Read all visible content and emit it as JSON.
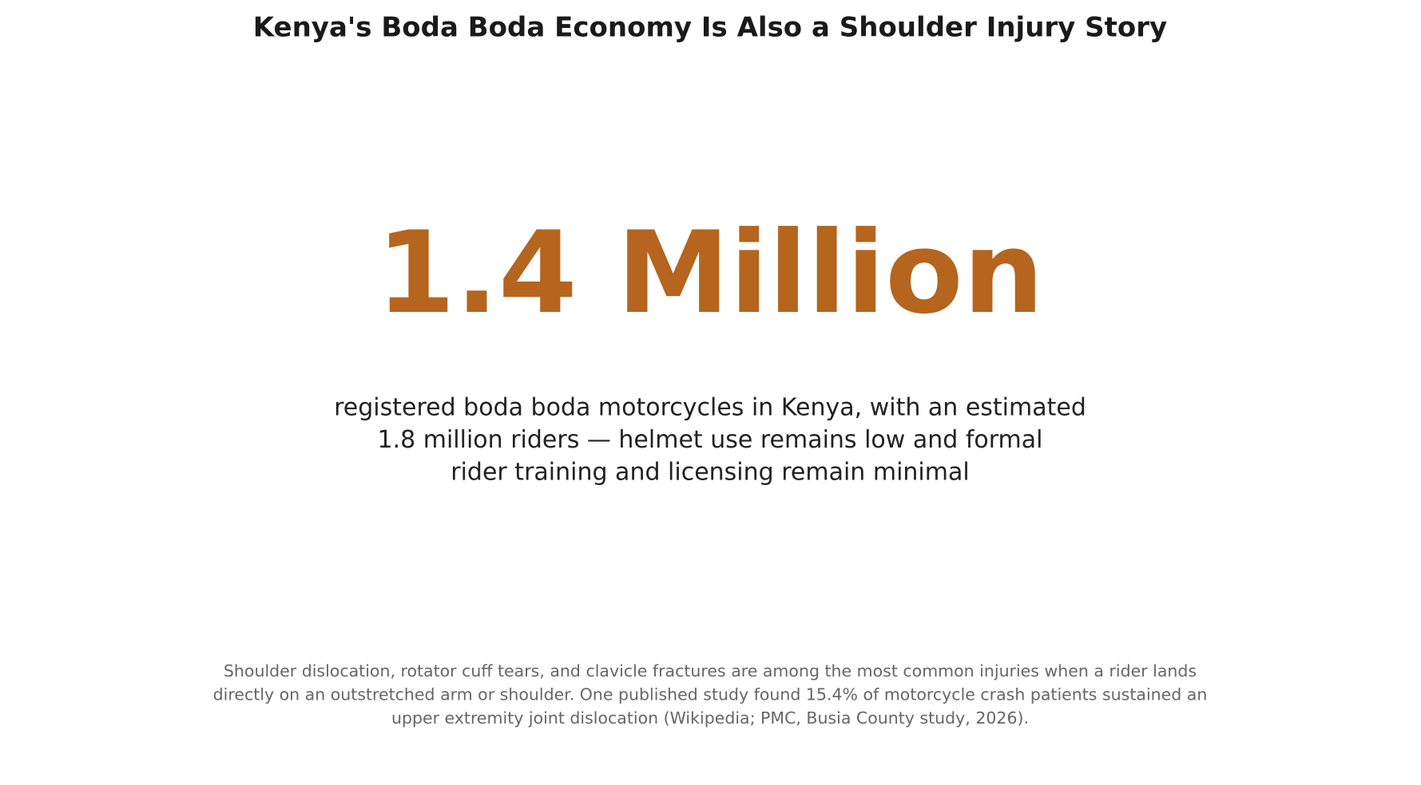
{
  "header": {
    "title": "Kenya's Boda Boda Economy Is Also a Shoulder Injury Story"
  },
  "headline": "1.4 Million",
  "description": {
    "lines": [
      "registered boda boda motorcycles in Kenya, with an estimated",
      "1.8 million riders — helmet use remains low and formal",
      "rider training and licensing remain minimal"
    ]
  },
  "footnote": {
    "lines": [
      "Shoulder dislocation, rotator cuff tears, and clavicle fractures are among the most common injuries when a rider lands",
      "directly on an outstretched arm or shoulder. One published study found 15.4% of motorcycle crash patients sustained an",
      "upper extremity joint dislocation (Wikipedia; PMC, Busia County study, 2026)."
    ]
  }
}
